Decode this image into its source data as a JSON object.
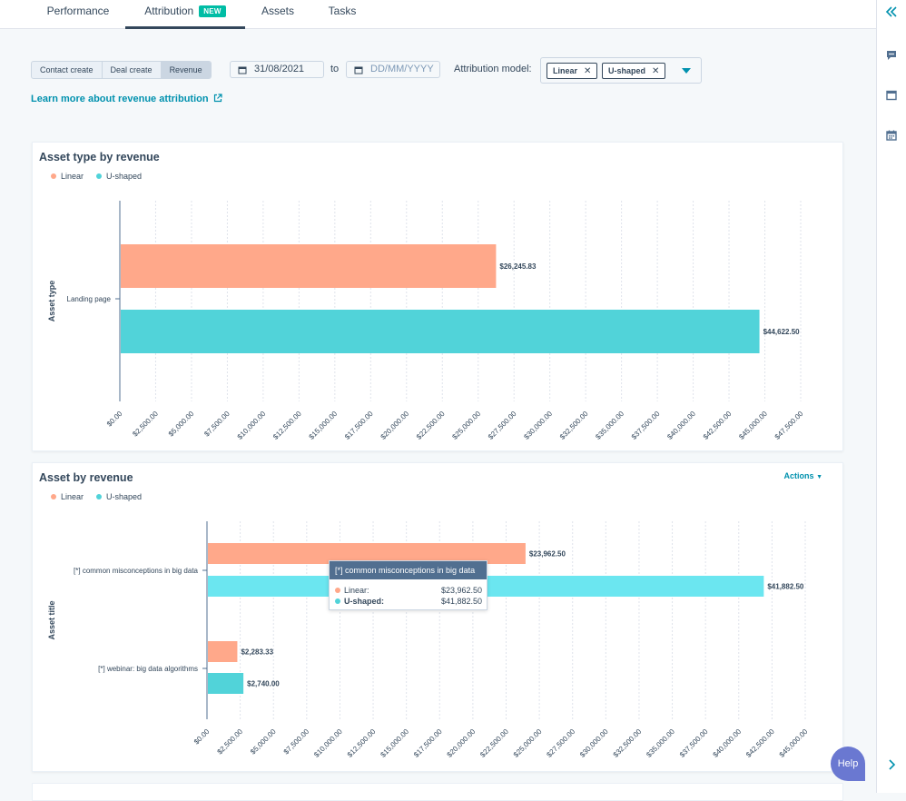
{
  "tabs": [
    {
      "label": "Performance",
      "active": false
    },
    {
      "label": "Attribution",
      "active": true,
      "badge": "NEW"
    },
    {
      "label": "Assets",
      "active": false
    },
    {
      "label": "Tasks",
      "active": false
    }
  ],
  "filters": {
    "segments": [
      "Contact create",
      "Deal create",
      "Revenue"
    ],
    "selected_segment": "Revenue",
    "start_date": "31/08/2021",
    "to_label": "to",
    "end_date_placeholder": "DD/MM/YYYY",
    "model_label": "Attribution model:",
    "models": [
      "Linear",
      "U-shaped"
    ]
  },
  "learn_link": "Learn more about revenue attribution",
  "colors": {
    "linear": "#ffa88a",
    "ushaped": "#51d3d9",
    "ushaped_hover": "#6be6f0"
  },
  "icons": {
    "rail": [
      "double-chevron-left-icon",
      "chat-icon",
      "window-icon",
      "calendar-icon",
      "chevron-right-icon"
    ]
  },
  "chart1": {
    "title": "Asset type by revenue",
    "legend": [
      "Linear",
      "U-shaped"
    ],
    "y_axis_label": "Asset type",
    "categories": [
      "Landing page"
    ],
    "value_labels": {
      "linear": [
        "$26,245.83"
      ],
      "ushaped": [
        "$44,622.50"
      ]
    },
    "tick_labels": [
      "$0.00",
      "$2,500.00",
      "$5,000.00",
      "$7,500.00",
      "$10,000.00",
      "$12,500.00",
      "$15,000.00",
      "$17,500.00",
      "$20,000.00",
      "$22,500.00",
      "$25,000.00",
      "$27,500.00",
      "$30,000.00",
      "$32,500.00",
      "$35,000.00",
      "$37,500.00",
      "$40,000.00",
      "$42,500.00",
      "$45,000.00",
      "$47,500.00"
    ]
  },
  "chart2": {
    "title": "Asset by revenue",
    "actions": "Actions",
    "legend": [
      "Linear",
      "U-shaped"
    ],
    "y_axis_label": "Asset title",
    "categories": [
      "[*] common misconceptions in big data",
      "[*] webinar: big data algorithms"
    ],
    "value_labels": {
      "linear": [
        "$23,962.50",
        "$2,283.33"
      ],
      "ushaped": [
        "$41,882.50",
        "$2,740.00"
      ]
    },
    "tick_labels": [
      "$0.00",
      "$2,500.00",
      "$5,000.00",
      "$7,500.00",
      "$10,000.00",
      "$12,500.00",
      "$15,000.00",
      "$17,500.00",
      "$20,000.00",
      "$22,500.00",
      "$25,000.00",
      "$27,500.00",
      "$30,000.00",
      "$32,500.00",
      "$35,000.00",
      "$37,500.00",
      "$40,000.00",
      "$42,500.00",
      "$45,000.00"
    ],
    "tooltip": {
      "title": "[*] common misconceptions in big data",
      "rows": [
        {
          "label": "Linear:",
          "value": "$23,962.50"
        },
        {
          "label": "U-shaped:",
          "value": "$41,882.50"
        }
      ]
    }
  },
  "chart_data": [
    {
      "type": "bar",
      "orientation": "horizontal",
      "title": "Asset type by revenue",
      "ylabel": "Asset type",
      "categories": [
        "Landing page"
      ],
      "series": [
        {
          "name": "Linear",
          "values": [
            26245.83
          ]
        },
        {
          "name": "U-shaped",
          "values": [
            44622.5
          ]
        }
      ],
      "xlim": [
        0,
        47500
      ],
      "tick_step": 2500,
      "grid": true,
      "legend": "top-left"
    },
    {
      "type": "bar",
      "orientation": "horizontal",
      "title": "Asset by revenue",
      "ylabel": "Asset title",
      "categories": [
        "[*] common misconceptions in big data",
        "[*] webinar: big data algorithms"
      ],
      "series": [
        {
          "name": "Linear",
          "values": [
            23962.5,
            2283.33
          ]
        },
        {
          "name": "U-shaped",
          "values": [
            41882.5,
            2740.0
          ]
        }
      ],
      "xlim": [
        0,
        45000
      ],
      "tick_step": 2500,
      "grid": true,
      "legend": "top-left"
    }
  ],
  "help": "Help"
}
